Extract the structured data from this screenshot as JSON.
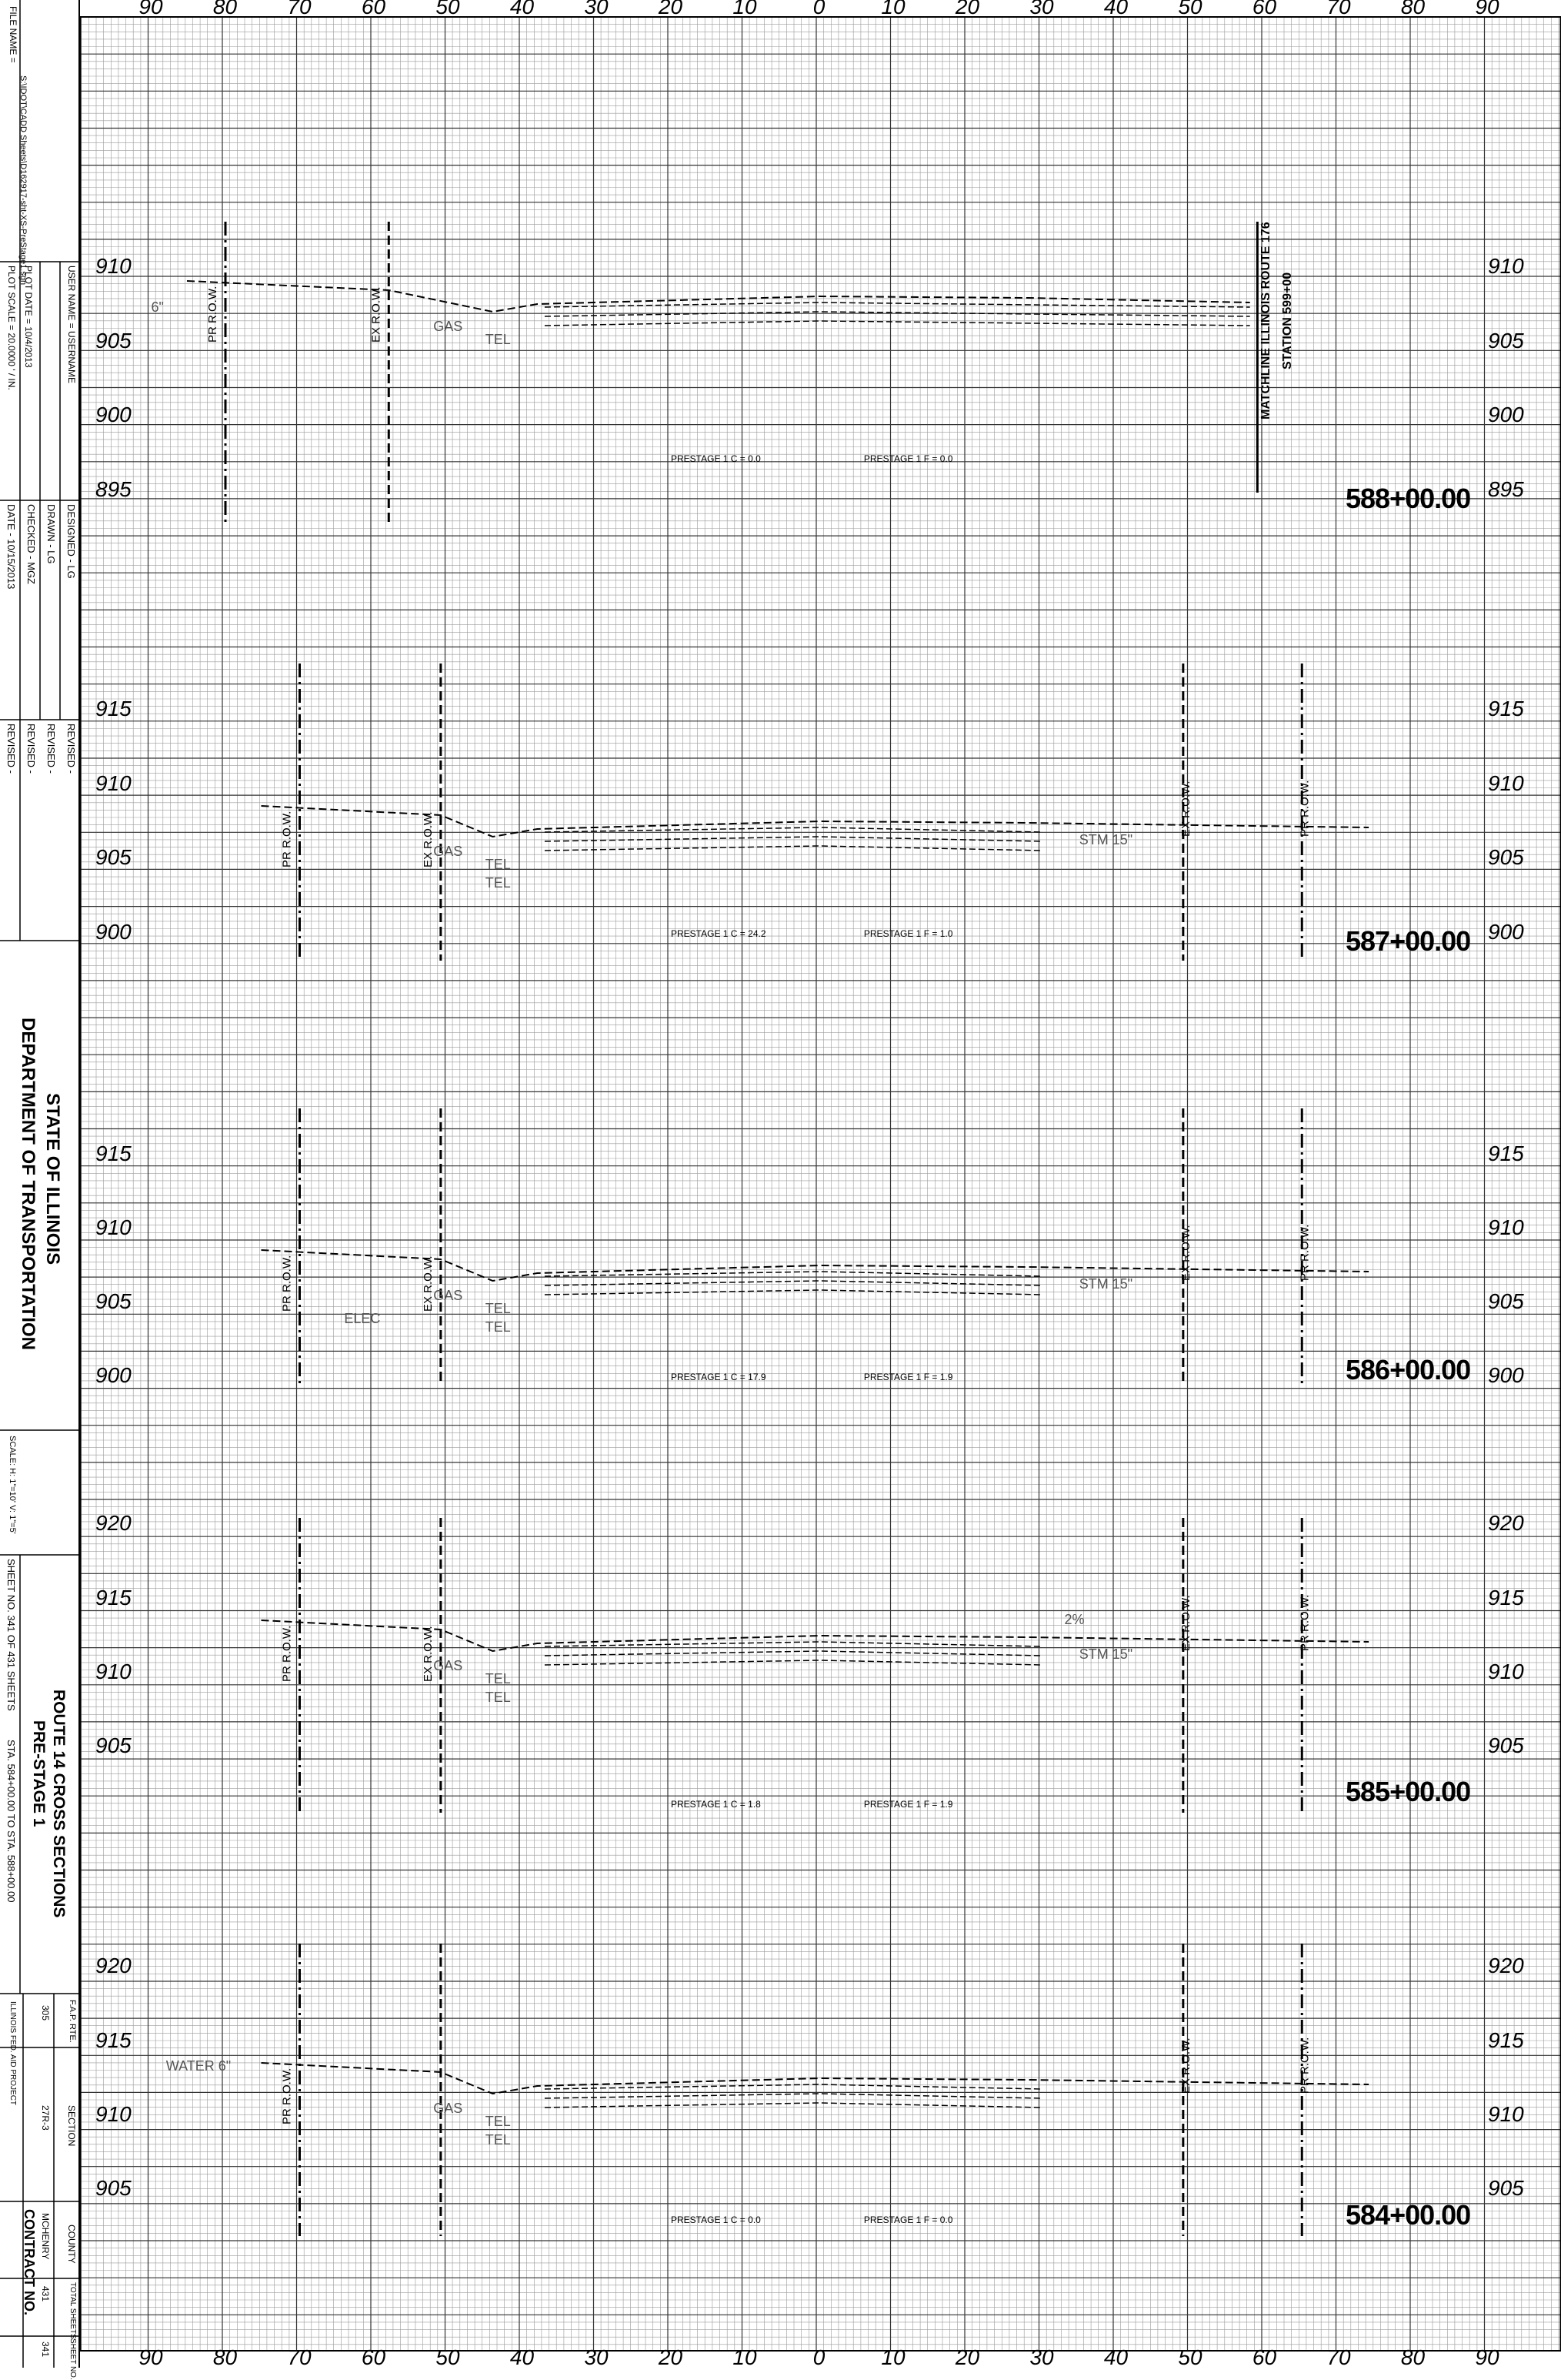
{
  "title_block": {
    "file_name_label": "FILE NAME =",
    "file_name": "S:\\IDOT\\CADD Sheets\\D162917-sht-XS-PreStage1.sgn",
    "user_name": "USER NAME = USERNAME",
    "plot_scale": "PLOT SCALE = 20.0000 ' / IN.",
    "plot_date": "PLOT DATE = 10/4/2013",
    "designed": "DESIGNED  -  LG",
    "drawn": "DRAWN  -  LG",
    "checked": "CHECKED  -  MGZ",
    "date": "DATE  -  10/15/2013",
    "revised_1": "REVISED  -",
    "revised_2": "REVISED  -",
    "revised_3": "REVISED  -",
    "revised_4": "REVISED  -",
    "agency_line1": "STATE OF ILLINOIS",
    "agency_line2": "DEPARTMENT OF TRANSPORTATION",
    "scale": "SCALE: H: 1\"=10'  V: 1\"=5'",
    "sheet_no": "SHEET NO. 341 OF 431 SHEETS",
    "sta_range": "STA. 584+00.00 TO STA. 588+00.00",
    "sheet_title_line1": "ROUTE 14 CROSS SECTIONS",
    "sheet_title_line2": "PRE-STAGE 1",
    "fap_rte_label": "F.A.P. RTE.",
    "fap_rte": "305",
    "section_label": "SECTION",
    "section": "27R-3",
    "county_label": "COUNTY",
    "county": "MCHENRY",
    "total_sheets_label": "TOTAL SHEETS",
    "total_sheets": "431",
    "sheet_label": "SHEET NO.",
    "sheet": "341",
    "contract": "CONTRACT NO.",
    "fed_aid": "ILLINOIS FED. AID PROJECT"
  },
  "offset_labels": [
    "90",
    "80",
    "70",
    "60",
    "50",
    "40",
    "30",
    "20",
    "10",
    "0",
    "10",
    "20",
    "30",
    "40",
    "50",
    "60",
    "70",
    "80",
    "90"
  ],
  "sections": [
    {
      "station": "588+00.00",
      "elevations": [
        "910",
        "905",
        "900",
        "895"
      ],
      "prestage": "PRESTAGE 1 C = 0.0",
      "prestage_f": "PRESTAGE 1 F = 0.0",
      "labels": [
        "PR R.O.W.",
        "EX R.O.W.",
        "GAS",
        "TEL",
        "6\""
      ],
      "watchline_1": "MATCHLINE ILLINOIS ROUTE 176",
      "watchline_2": "STATION 599+00"
    },
    {
      "station": "587+00.00",
      "elevations": [
        "915",
        "910",
        "905",
        "900"
      ],
      "prestage": "PRESTAGE 1 C = 24.2",
      "prestage_f": "PRESTAGE 1 F = 1.0",
      "labels": [
        "PR R.O.W.",
        "EX R.O.W.",
        "TEL",
        "GAS",
        "TEL",
        "STM 15\"",
        "EX R.O.W.",
        "PR R.O.W."
      ]
    },
    {
      "station": "586+00.00",
      "elevations": [
        "915",
        "910",
        "905",
        "900"
      ],
      "prestage": "PRESTAGE 1 C = 17.9",
      "prestage_f": "PRESTAGE 1 F = 1.9",
      "labels": [
        "PR R.O.W.",
        "EX R.O.W.",
        "ELEC",
        "TEL",
        "GAS",
        "TEL",
        "STM 15\"",
        "EX R.O.W.",
        "PR R.O.W."
      ]
    },
    {
      "station": "585+00.00",
      "elevations": [
        "920",
        "915",
        "910",
        "905"
      ],
      "prestage": "PRESTAGE 1 C = 1.8",
      "prestage_f": "PRESTAGE 1 F = 1.9",
      "labels": [
        "PR R.O.W.",
        "EX R.O.W.",
        "GAS",
        "TEL",
        "TEL",
        "STM 15\"",
        "2%",
        "EX R.O.W.",
        "PR R.O.W."
      ]
    },
    {
      "station": "584+00.00",
      "elevations": [
        "920",
        "915",
        "910",
        "905"
      ],
      "prestage": "PRESTAGE 1 C = 0.0",
      "prestage_f": "PRESTAGE 1 F = 0.0",
      "labels": [
        "WATER 6\"",
        "PR R.O.W.",
        "EX R.O.W.",
        "GAS",
        "TEL",
        "TEL",
        "EX R.O.W.",
        "PR R.O.W."
      ]
    }
  ]
}
